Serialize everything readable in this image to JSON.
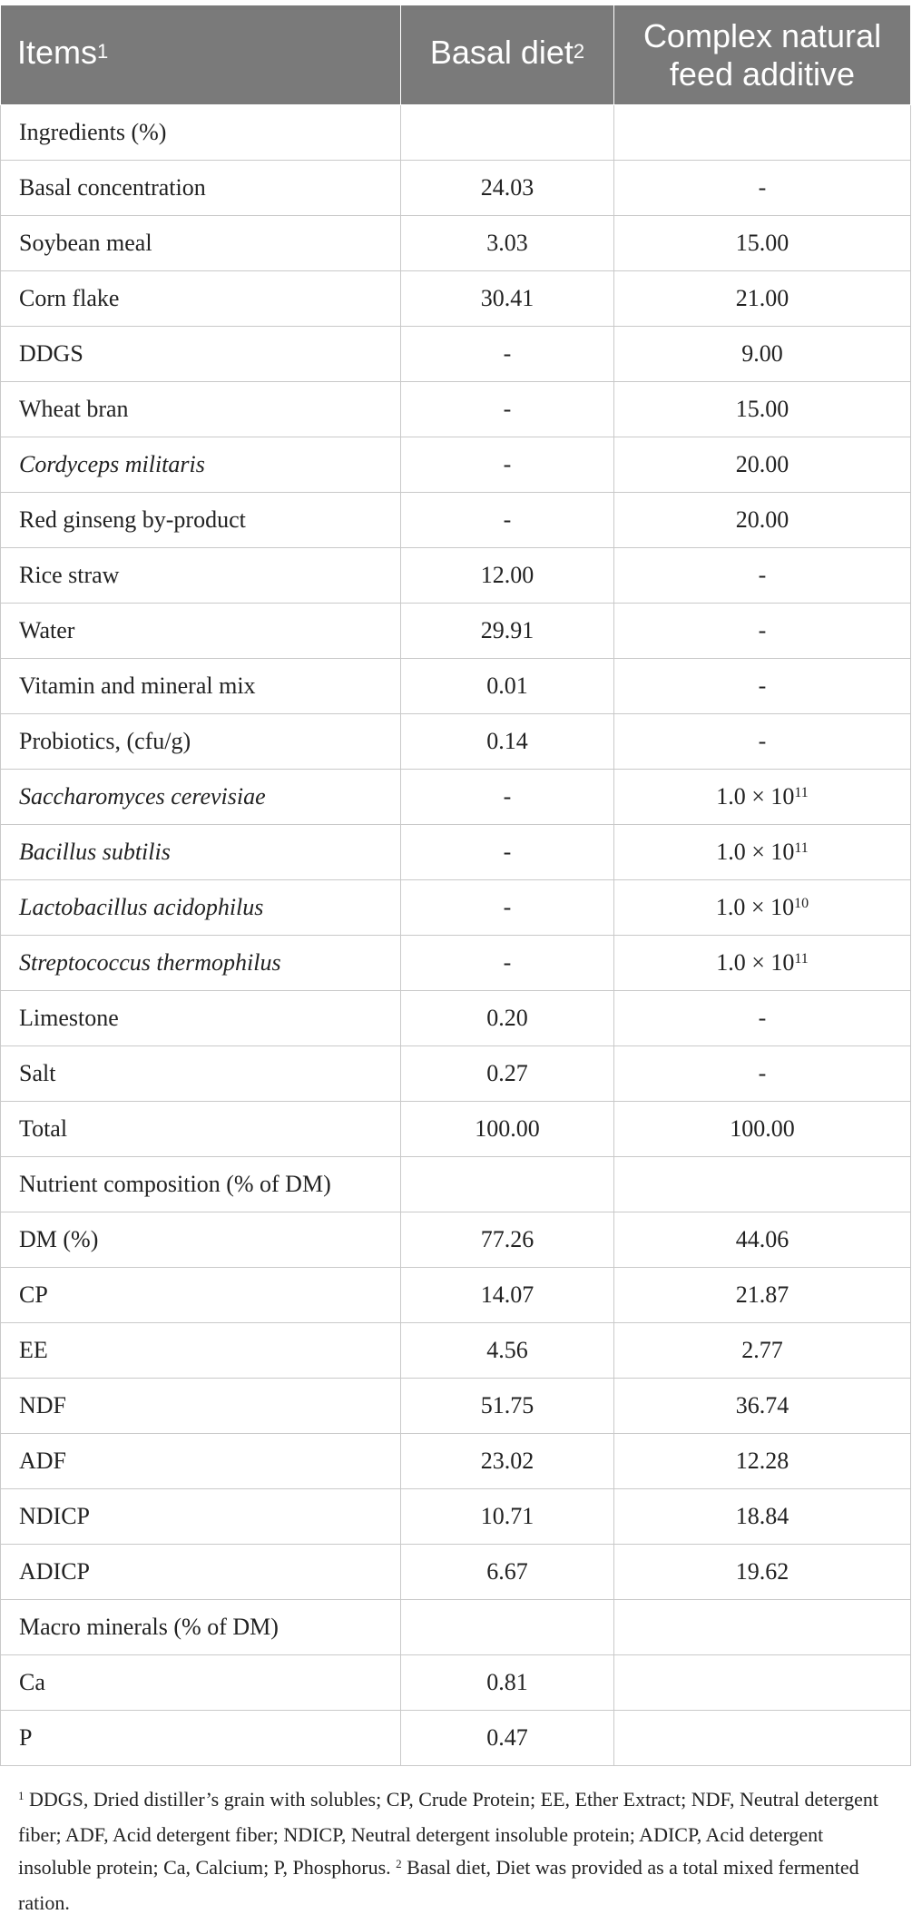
{
  "table": {
    "headers": {
      "items": "Items",
      "items_sup": "1",
      "basal": "Basal diet",
      "basal_sup": "2",
      "complex_line1": "Complex natural",
      "complex_line2": "feed additive"
    },
    "rows": [
      {
        "item": "Ingredients (%)",
        "basal": "",
        "complex": ""
      },
      {
        "item": "Basal concentration",
        "basal": "24.03",
        "complex": "-"
      },
      {
        "item": "Soybean meal",
        "basal": "3.03",
        "complex": "15.00"
      },
      {
        "item": "Corn flake",
        "basal": "30.41",
        "complex": "21.00"
      },
      {
        "item": "DDGS",
        "basal": "-",
        "complex": "9.00"
      },
      {
        "item": "Wheat bran",
        "basal": "-",
        "complex": "15.00"
      },
      {
        "item": "Cordyceps militaris",
        "basal": "-",
        "complex": "20.00"
      },
      {
        "item": "Red ginseng by-product",
        "basal": "-",
        "complex": "20.00"
      },
      {
        "item": "Rice straw",
        "basal": "12.00",
        "complex": "-"
      },
      {
        "item": "Water",
        "basal": "29.91",
        "complex": "-"
      },
      {
        "item": "Vitamin and mineral mix",
        "basal": "0.01",
        "complex": "-"
      },
      {
        "item": "Probiotics, (cfu/g)",
        "basal": "0.14",
        "complex": "-"
      },
      {
        "item": "Saccharomyces cerevisiae",
        "basal": "-",
        "complex_base": "1.0 × 10",
        "complex_exp": "11"
      },
      {
        "item": "Bacillus subtilis",
        "basal": "-",
        "complex_base": "1.0 × 10",
        "complex_exp": "11"
      },
      {
        "item": "Lactobacillus acidophilus",
        "basal": "-",
        "complex_base": "1.0 × 10",
        "complex_exp": "10"
      },
      {
        "item": "Streptococcus thermophilus",
        "basal": "-",
        "complex_base": "1.0 × 10",
        "complex_exp": "11"
      },
      {
        "item": "Limestone",
        "basal": "0.20",
        "complex": "-"
      },
      {
        "item": "Salt",
        "basal": "0.27",
        "complex": "-"
      },
      {
        "item": "Total",
        "basal": "100.00",
        "complex": "100.00"
      },
      {
        "item": "Nutrient composition (% of DM)",
        "basal": "",
        "complex": ""
      },
      {
        "item": "DM (%)",
        "basal": "77.26",
        "complex": "44.06"
      },
      {
        "item": "CP",
        "basal": "14.07",
        "complex": "21.87"
      },
      {
        "item": "EE",
        "basal": "4.56",
        "complex": "2.77"
      },
      {
        "item": "NDF",
        "basal": "51.75",
        "complex": "36.74"
      },
      {
        "item": "ADF",
        "basal": "23.02",
        "complex": "12.28"
      },
      {
        "item": "NDICP",
        "basal": "10.71",
        "complex": "18.84"
      },
      {
        "item": "ADICP",
        "basal": "6.67",
        "complex": "19.62"
      },
      {
        "item": "Macro minerals (% of DM)",
        "basal": "",
        "complex": ""
      },
      {
        "item": "Ca",
        "basal": "0.81",
        "complex": ""
      },
      {
        "item": "P",
        "basal": "0.47",
        "complex": ""
      }
    ]
  },
  "footnote": {
    "mark1": "1",
    "text1": "DDGS, Dried distiller’s grain with solubles; CP, Crude Protein; EE, Ether Extract; NDF, Neutral detergent fiber; ADF, Acid detergent fiber; NDICP, Neutral detergent insoluble protein; ADICP, Acid detergent insoluble protein; Ca, Calcium; P, Phosphorus.",
    "mark2": "2",
    "text2": "Basal diet, Diet was provided as a total mixed fermented ration."
  }
}
